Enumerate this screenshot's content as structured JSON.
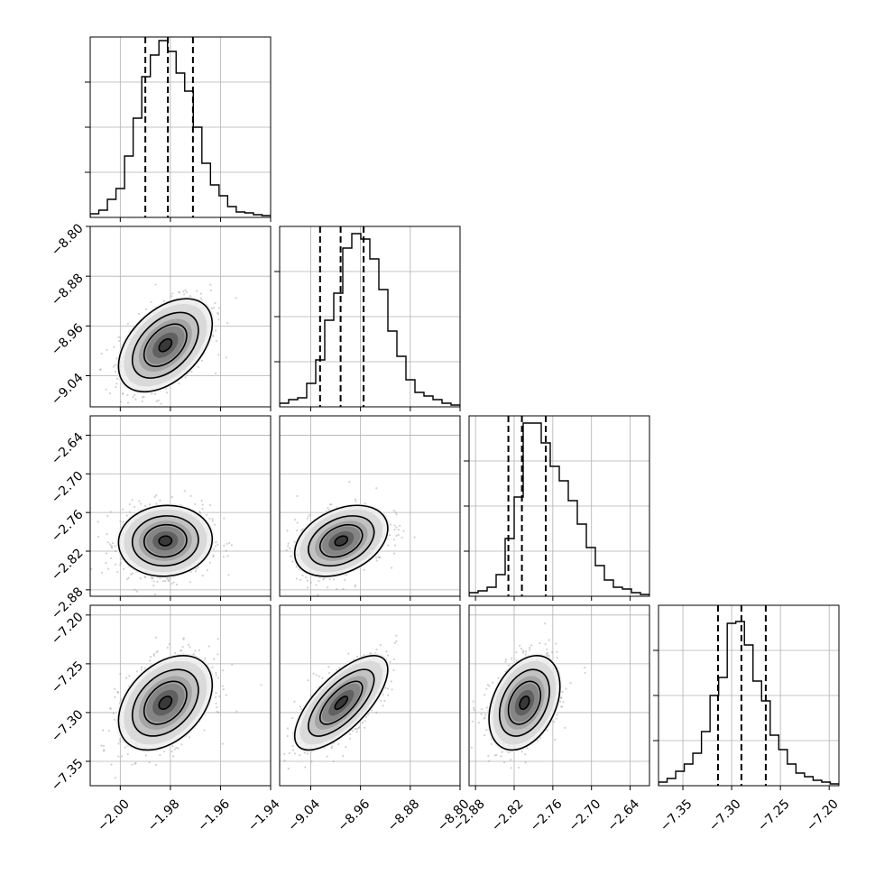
{
  "chart_data": {
    "type": "corner",
    "n_params": 4,
    "grid": true,
    "params": [
      {
        "range": [
          -2.012,
          -1.94
        ],
        "ticks": [
          -2.0,
          -1.98,
          -1.96,
          -1.94
        ],
        "tick_labels": [
          "−2.00",
          "−1.98",
          "−1.96",
          "−1.94"
        ],
        "mean": -1.982,
        "sd": 0.0085,
        "quantiles": [
          -1.99,
          -1.981,
          -1.971
        ],
        "hist": [
          0.02,
          0.04,
          0.1,
          0.16,
          0.34,
          0.55,
          0.78,
          0.9,
          0.98,
          0.92,
          0.8,
          0.7,
          0.5,
          0.3,
          0.18,
          0.12,
          0.06,
          0.03,
          0.025,
          0.015,
          0.01
        ]
      },
      {
        "range": [
          -9.09,
          -8.8
        ],
        "ticks": [
          -9.04,
          -8.96,
          -8.88,
          -8.8
        ],
        "tick_labels": [
          "−9.04",
          "−8.96",
          "−8.88",
          "−8.80"
        ],
        "mean": -8.991,
        "sd": 0.034,
        "quantiles": [
          -9.025,
          -8.992,
          -8.955
        ],
        "hist": [
          0.02,
          0.04,
          0.05,
          0.13,
          0.26,
          0.48,
          0.63,
          0.88,
          0.96,
          0.93,
          0.82,
          0.65,
          0.42,
          0.28,
          0.15,
          0.08,
          0.06,
          0.04,
          0.02,
          0.01
        ]
      },
      {
        "range": [
          -2.89,
          -2.61
        ],
        "ticks": [
          -2.88,
          -2.82,
          -2.76,
          -2.7,
          -2.64
        ],
        "tick_labels": [
          "−2.88",
          "−2.82",
          "−2.76",
          "−2.70",
          "−2.64"
        ],
        "mean": -2.804,
        "sd": 0.025,
        "quantiles": [
          -2.829,
          -2.808,
          -2.771
        ],
        "hist": [
          0.02,
          0.03,
          0.05,
          0.12,
          0.32,
          0.55,
          0.96,
          0.96,
          0.85,
          0.72,
          0.64,
          0.53,
          0.4,
          0.27,
          0.17,
          0.09,
          0.05,
          0.04,
          0.02,
          0.01
        ]
      },
      {
        "range": [
          -7.375,
          -7.19
        ],
        "ticks": [
          -7.35,
          -7.3,
          -7.25,
          -7.2
        ],
        "tick_labels": [
          "−7.35",
          "−7.30",
          "−7.25",
          "−7.20"
        ],
        "mean": -7.29,
        "sd": 0.022,
        "quantiles": [
          -7.314,
          -7.29,
          -7.265
        ],
        "hist": [
          0.02,
          0.04,
          0.08,
          0.12,
          0.18,
          0.3,
          0.5,
          0.6,
          0.9,
          0.91,
          0.78,
          0.58,
          0.47,
          0.28,
          0.2,
          0.12,
          0.07,
          0.05,
          0.03,
          0.02,
          0.01
        ]
      }
    ],
    "correlations": [
      [
        1.0,
        0.45,
        0.05,
        0.38
      ],
      [
        0.45,
        1.0,
        0.35,
        0.7
      ],
      [
        0.05,
        0.35,
        1.0,
        0.35
      ],
      [
        0.38,
        0.7,
        0.35,
        1.0
      ]
    ],
    "colors": {
      "line": "#000000",
      "grid": "#b0b0b0",
      "scatter": "#9a9a9a"
    }
  }
}
